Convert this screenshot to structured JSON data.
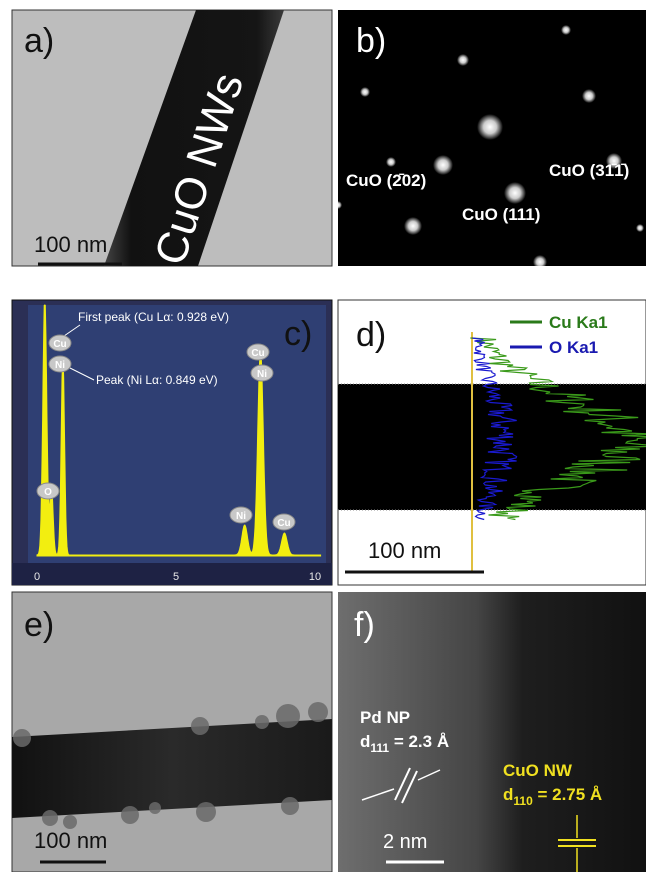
{
  "panels": [
    {
      "label": "a)",
      "caption": "CuO NWs",
      "scale_bar": "100 nm"
    },
    {
      "label": "b)",
      "spots": [
        "CuO (31̄1̄)",
        "CuO (2̄02)",
        "CuO (111)"
      ]
    },
    {
      "label": "c)",
      "annotations": [
        "First peak (Cu Lα: 0.928 eV)",
        "Peak (Ni Lα: 0.849 eV)"
      ],
      "peak_labels": [
        "Cu",
        "Ni",
        "O",
        "Cu",
        "Ni",
        "Ni",
        "Cu"
      ],
      "axis_ticks": [
        0,
        5,
        10
      ]
    },
    {
      "label": "d)",
      "legend": [
        "Cu Ka1",
        "O Ka1"
      ],
      "scale_bar": "100 nm"
    },
    {
      "label": "e)",
      "scale_bar": "100 nm"
    },
    {
      "label": "f)",
      "particle": {
        "name": "Pd NP",
        "symbol": "d",
        "subscript": "111",
        "spacing": " = 2.3 Å"
      },
      "wire": {
        "name": "CuO NW",
        "symbol": "d",
        "subscript": "110",
        "spacing": " = 2.75 Å"
      },
      "scale_bar": "2 nm"
    }
  ]
}
